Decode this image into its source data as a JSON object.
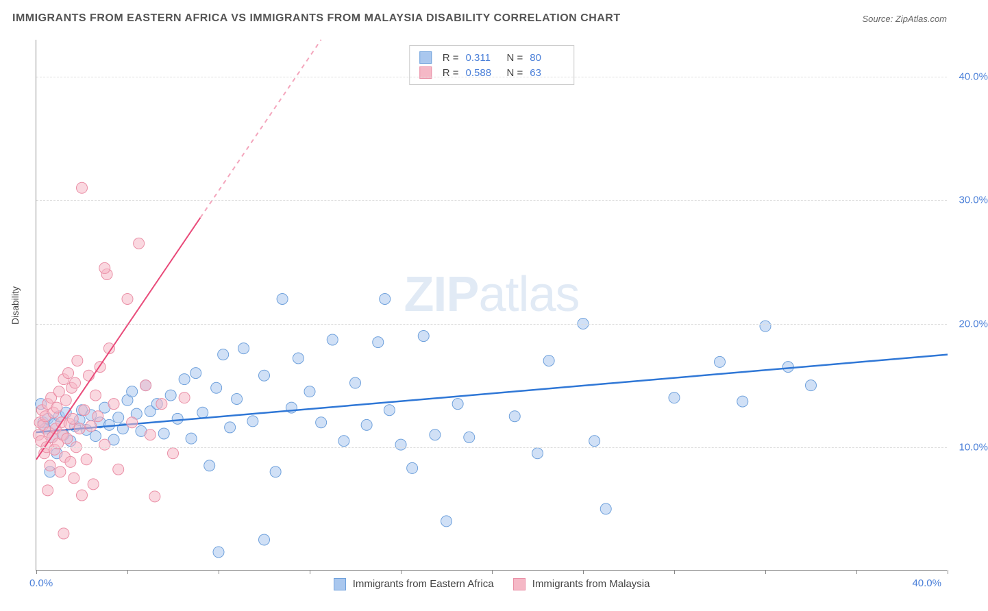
{
  "title": "IMMIGRANTS FROM EASTERN AFRICA VS IMMIGRANTS FROM MALAYSIA DISABILITY CORRELATION CHART",
  "source": "Source: ZipAtlas.com",
  "watermark": "ZIPatlas",
  "y_axis_title": "Disability",
  "chart": {
    "type": "scatter",
    "xlim": [
      0,
      40
    ],
    "ylim": [
      0,
      43
    ],
    "x_axis_label_min": "0.0%",
    "x_axis_label_max": "40.0%",
    "y_ticks": [
      10,
      20,
      30,
      40
    ],
    "y_tick_labels": [
      "10.0%",
      "20.0%",
      "30.0%",
      "40.0%"
    ],
    "x_ticks": [
      0,
      4,
      8,
      12,
      16,
      20,
      24,
      28,
      32,
      36,
      40
    ],
    "background_color": "#ffffff",
    "grid_color": "#dddddd",
    "axis_color": "#888888",
    "marker_radius": 8,
    "marker_opacity": 0.55,
    "series": [
      {
        "name": "Immigrants from Eastern Africa",
        "color_fill": "#a9c7ee",
        "color_stroke": "#6fa1dc",
        "trend_color": "#2f77d6",
        "trend_style": "solid",
        "trend_width": 2.5,
        "trend": {
          "x1": 0,
          "y1": 11.2,
          "x2": 40,
          "y2": 17.5
        },
        "points": [
          [
            0.3,
            12.0
          ],
          [
            0.4,
            11.5
          ],
          [
            0.5,
            12.3
          ],
          [
            0.7,
            10.8
          ],
          [
            0.8,
            11.9
          ],
          [
            1.0,
            12.5
          ],
          [
            1.2,
            11.0
          ],
          [
            1.3,
            12.8
          ],
          [
            1.5,
            10.5
          ],
          [
            1.7,
            11.7
          ],
          [
            1.9,
            12.2
          ],
          [
            2.0,
            13.0
          ],
          [
            2.2,
            11.4
          ],
          [
            2.4,
            12.6
          ],
          [
            2.6,
            10.9
          ],
          [
            2.8,
            12.0
          ],
          [
            3.0,
            13.2
          ],
          [
            3.2,
            11.8
          ],
          [
            3.4,
            10.6
          ],
          [
            3.6,
            12.4
          ],
          [
            3.8,
            11.5
          ],
          [
            4.0,
            13.8
          ],
          [
            4.2,
            14.5
          ],
          [
            4.4,
            12.7
          ],
          [
            4.6,
            11.3
          ],
          [
            4.8,
            15.0
          ],
          [
            5.0,
            12.9
          ],
          [
            5.3,
            13.5
          ],
          [
            5.6,
            11.1
          ],
          [
            5.9,
            14.2
          ],
          [
            6.2,
            12.3
          ],
          [
            6.5,
            15.5
          ],
          [
            6.8,
            10.7
          ],
          [
            7.0,
            16.0
          ],
          [
            7.3,
            12.8
          ],
          [
            7.6,
            8.5
          ],
          [
            7.9,
            14.8
          ],
          [
            8.2,
            17.5
          ],
          [
            8.5,
            11.6
          ],
          [
            8.8,
            13.9
          ],
          [
            9.1,
            18.0
          ],
          [
            9.5,
            12.1
          ],
          [
            10.0,
            15.8
          ],
          [
            10.5,
            8.0
          ],
          [
            10.8,
            22.0
          ],
          [
            11.2,
            13.2
          ],
          [
            11.5,
            17.2
          ],
          [
            12.0,
            14.5
          ],
          [
            12.5,
            12.0
          ],
          [
            13.0,
            18.7
          ],
          [
            13.5,
            10.5
          ],
          [
            14.0,
            15.2
          ],
          [
            14.5,
            11.8
          ],
          [
            15.0,
            18.5
          ],
          [
            15.3,
            22.0
          ],
          [
            15.5,
            13.0
          ],
          [
            16.0,
            10.2
          ],
          [
            16.5,
            8.3
          ],
          [
            17.0,
            19.0
          ],
          [
            17.5,
            11.0
          ],
          [
            18.0,
            4.0
          ],
          [
            18.5,
            13.5
          ],
          [
            19.0,
            10.8
          ],
          [
            21.0,
            12.5
          ],
          [
            22.0,
            9.5
          ],
          [
            22.5,
            17.0
          ],
          [
            24.0,
            20.0
          ],
          [
            24.5,
            10.5
          ],
          [
            25.0,
            5.0
          ],
          [
            28.0,
            14.0
          ],
          [
            30.0,
            16.9
          ],
          [
            31.0,
            13.7
          ],
          [
            32.0,
            19.8
          ],
          [
            33.0,
            16.5
          ],
          [
            34.0,
            15.0
          ],
          [
            8.0,
            1.5
          ],
          [
            10.0,
            2.5
          ],
          [
            0.2,
            13.5
          ],
          [
            0.6,
            8.0
          ],
          [
            0.9,
            9.5
          ]
        ]
      },
      {
        "name": "Immigrants from Malaysia",
        "color_fill": "#f5b8c6",
        "color_stroke": "#ea8fa6",
        "trend_color": "#e94b7a",
        "trend_style": "solid-then-dashed",
        "trend_width": 2,
        "trend": {
          "x1": 0,
          "y1": 9.0,
          "x2": 12.5,
          "y2": 43
        },
        "trend_dash_from_x": 7.2,
        "points": [
          [
            0.1,
            11.0
          ],
          [
            0.15,
            12.0
          ],
          [
            0.2,
            10.5
          ],
          [
            0.25,
            13.0
          ],
          [
            0.3,
            11.8
          ],
          [
            0.35,
            9.5
          ],
          [
            0.4,
            12.5
          ],
          [
            0.45,
            10.0
          ],
          [
            0.5,
            13.5
          ],
          [
            0.55,
            11.2
          ],
          [
            0.6,
            8.5
          ],
          [
            0.65,
            14.0
          ],
          [
            0.7,
            10.8
          ],
          [
            0.75,
            12.8
          ],
          [
            0.8,
            9.8
          ],
          [
            0.85,
            11.5
          ],
          [
            0.9,
            13.2
          ],
          [
            0.95,
            10.3
          ],
          [
            1.0,
            14.5
          ],
          [
            1.05,
            8.0
          ],
          [
            1.1,
            12.0
          ],
          [
            1.15,
            11.0
          ],
          [
            1.2,
            15.5
          ],
          [
            1.25,
            9.2
          ],
          [
            1.3,
            13.8
          ],
          [
            1.35,
            10.7
          ],
          [
            1.4,
            16.0
          ],
          [
            1.45,
            11.9
          ],
          [
            1.5,
            8.8
          ],
          [
            1.55,
            14.8
          ],
          [
            1.6,
            12.3
          ],
          [
            1.65,
            7.5
          ],
          [
            1.7,
            15.2
          ],
          [
            1.75,
            10.0
          ],
          [
            1.8,
            17.0
          ],
          [
            1.9,
            11.5
          ],
          [
            2.0,
            6.1
          ],
          [
            2.1,
            13.0
          ],
          [
            2.2,
            9.0
          ],
          [
            2.3,
            15.8
          ],
          [
            2.4,
            11.7
          ],
          [
            2.5,
            7.0
          ],
          [
            2.6,
            14.2
          ],
          [
            2.7,
            12.5
          ],
          [
            2.8,
            16.5
          ],
          [
            3.0,
            10.2
          ],
          [
            3.1,
            24.0
          ],
          [
            3.2,
            18.0
          ],
          [
            3.4,
            13.5
          ],
          [
            3.6,
            8.2
          ],
          [
            4.0,
            22.0
          ],
          [
            4.2,
            12.0
          ],
          [
            4.5,
            26.5
          ],
          [
            4.8,
            15.0
          ],
          [
            5.0,
            11.0
          ],
          [
            5.2,
            6.0
          ],
          [
            5.5,
            13.5
          ],
          [
            6.0,
            9.5
          ],
          [
            6.5,
            14.0
          ],
          [
            2.0,
            31.0
          ],
          [
            3.0,
            24.5
          ],
          [
            1.2,
            3.0
          ],
          [
            0.5,
            6.5
          ]
        ]
      }
    ]
  },
  "stats": [
    {
      "r": "0.311",
      "n": "80",
      "swatch_fill": "#a9c7ee",
      "swatch_stroke": "#6fa1dc"
    },
    {
      "r": "0.588",
      "n": "63",
      "swatch_fill": "#f5b8c6",
      "swatch_stroke": "#ea8fa6"
    }
  ],
  "bottom_legend": [
    {
      "label": "Immigrants from Eastern Africa",
      "swatch_fill": "#a9c7ee",
      "swatch_stroke": "#6fa1dc"
    },
    {
      "label": "Immigrants from Malaysia",
      "swatch_fill": "#f5b8c6",
      "swatch_stroke": "#ea8fa6"
    }
  ]
}
